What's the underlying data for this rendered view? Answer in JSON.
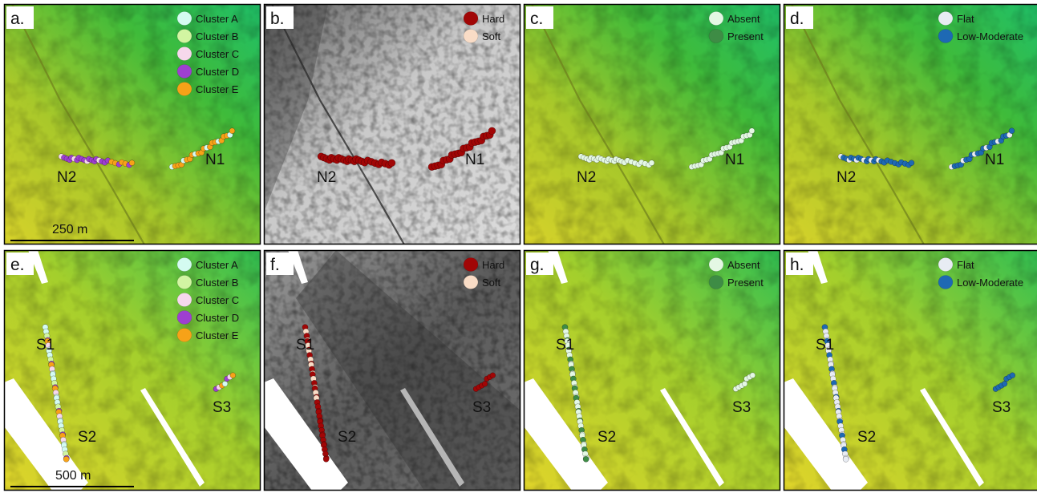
{
  "panels": [
    {
      "letter": "a.",
      "theme": "bathy",
      "legend": [
        {
          "label": "Cluster A",
          "color": "#d4fbf1"
        },
        {
          "label": "Cluster B",
          "color": "#d2f5a2"
        },
        {
          "label": "Cluster C",
          "color": "#f6d8ec"
        },
        {
          "label": "Cluster D",
          "color": "#9e3fd0"
        },
        {
          "label": "Cluster E",
          "color": "#f7a218"
        }
      ],
      "sites": [
        "N2",
        "N1"
      ],
      "scale_label": "250 m",
      "transects": "north_clusters"
    },
    {
      "letter": "b.",
      "theme": "backscatter",
      "legend": [
        {
          "label": "Hard",
          "color": "#a10606"
        },
        {
          "label": "Soft",
          "color": "#f9dcc6"
        }
      ],
      "sites": [
        "N2",
        "N1"
      ],
      "scale_label": "",
      "transects": "north_hard"
    },
    {
      "letter": "c.",
      "theme": "bathy",
      "legend": [
        {
          "label": "Absent",
          "color": "#e4f8e4"
        },
        {
          "label": "Present",
          "color": "#3e8c45"
        }
      ],
      "sites": [
        "N2",
        "N1"
      ],
      "scale_label": "",
      "transects": "north_absent"
    },
    {
      "letter": "d.",
      "theme": "bathy",
      "legend": [
        {
          "label": "Flat",
          "color": "#e8ecf3"
        },
        {
          "label": "Low-Moderate",
          "color": "#1e69b4"
        }
      ],
      "sites": [
        "N2",
        "N1"
      ],
      "scale_label": "",
      "transects": "north_relief"
    },
    {
      "letter": "e.",
      "theme": "bathy2",
      "legend": [
        {
          "label": "Cluster A",
          "color": "#d4fbf1"
        },
        {
          "label": "Cluster B",
          "color": "#d2f5a2"
        },
        {
          "label": "Cluster C",
          "color": "#f6d8ec"
        },
        {
          "label": "Cluster D",
          "color": "#9e3fd0"
        },
        {
          "label": "Cluster E",
          "color": "#f7a218"
        }
      ],
      "sites": [
        "S1",
        "S2",
        "S3"
      ],
      "scale_label": "500 m",
      "transects": "south_clusters"
    },
    {
      "letter": "f.",
      "theme": "backscatter2",
      "legend": [
        {
          "label": "Hard",
          "color": "#a10606"
        },
        {
          "label": "Soft",
          "color": "#f9dcc6"
        }
      ],
      "sites": [
        "S1",
        "S2",
        "S3"
      ],
      "scale_label": "",
      "transects": "south_hard"
    },
    {
      "letter": "g.",
      "theme": "bathy2",
      "legend": [
        {
          "label": "Absent",
          "color": "#e4f8e4"
        },
        {
          "label": "Present",
          "color": "#3e8c45"
        }
      ],
      "sites": [
        "S1",
        "S2",
        "S3"
      ],
      "scale_label": "",
      "transects": "south_absent"
    },
    {
      "letter": "h.",
      "theme": "bathy2",
      "legend": [
        {
          "label": "Flat",
          "color": "#e8ecf3"
        },
        {
          "label": "Low-Moderate",
          "color": "#1e69b4"
        }
      ],
      "sites": [
        "S1",
        "S2",
        "S3"
      ],
      "scale_label": "",
      "transects": "south_relief"
    }
  ]
}
